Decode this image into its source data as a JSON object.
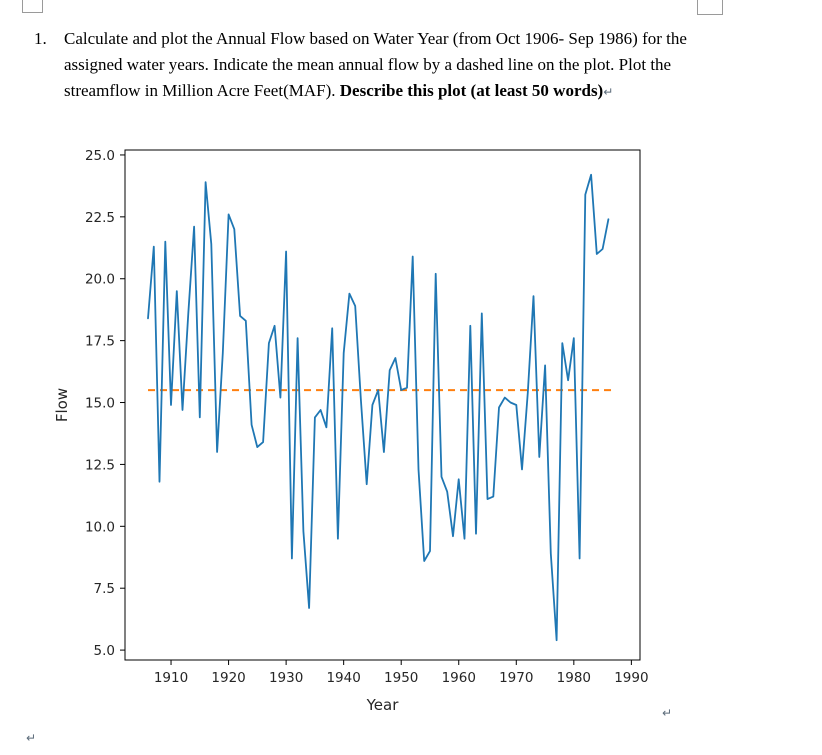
{
  "document": {
    "question_number": "1.",
    "question_text": "Calculate and plot the Annual Flow based on Water Year (from Oct 1906- Sep 1986) for the assigned water years. Indicate the mean annual flow by a dashed line on the plot. Plot the streamflow in Million Acre Feet(MAF). ",
    "question_bold": "Describe this plot (at least 50 words)",
    "line_break_mark": "↵",
    "para_mark_bottom_left": "↵",
    "para_mark_right": "↵"
  },
  "chart_data": {
    "type": "line",
    "title": "",
    "xlabel": "Year",
    "ylabel": "Flow",
    "x_ticks": [
      1910,
      1920,
      1930,
      1940,
      1950,
      1960,
      1970,
      1980,
      1990
    ],
    "y_ticks": [
      5.0,
      7.5,
      10.0,
      12.5,
      15.0,
      17.5,
      20.0,
      22.5,
      25.0
    ],
    "xlim": [
      1902,
      1991.5
    ],
    "ylim": [
      4.6,
      25.2
    ],
    "grid": false,
    "legend": "none",
    "mean_flow": 15.5,
    "line_color": "#1f77b4",
    "mean_line_color": "#ff7f0e",
    "years": [
      1906,
      1907,
      1908,
      1909,
      1910,
      1911,
      1912,
      1913,
      1914,
      1915,
      1916,
      1917,
      1918,
      1919,
      1920,
      1921,
      1922,
      1923,
      1924,
      1925,
      1926,
      1927,
      1928,
      1929,
      1930,
      1931,
      1932,
      1933,
      1934,
      1935,
      1936,
      1937,
      1938,
      1939,
      1940,
      1941,
      1942,
      1943,
      1944,
      1945,
      1946,
      1947,
      1948,
      1949,
      1950,
      1951,
      1952,
      1953,
      1954,
      1955,
      1956,
      1957,
      1958,
      1959,
      1960,
      1961,
      1962,
      1963,
      1964,
      1965,
      1966,
      1967,
      1968,
      1969,
      1970,
      1971,
      1972,
      1973,
      1974,
      1975,
      1976,
      1977,
      1978,
      1979,
      1980,
      1981,
      1982,
      1983,
      1984,
      1985,
      1986
    ],
    "values": [
      18.4,
      21.3,
      11.8,
      21.5,
      14.9,
      19.5,
      14.7,
      18.6,
      22.1,
      14.4,
      23.9,
      21.4,
      13.0,
      17.0,
      22.6,
      22.0,
      18.5,
      18.3,
      14.1,
      13.2,
      13.4,
      17.4,
      18.1,
      15.2,
      21.1,
      8.7,
      17.6,
      9.8,
      6.7,
      14.4,
      14.7,
      14.0,
      18.0,
      9.5,
      17.0,
      19.4,
      18.9,
      15.1,
      11.7,
      14.9,
      15.5,
      13.0,
      16.3,
      16.8,
      15.5,
      15.6,
      20.9,
      12.3,
      8.6,
      9.0,
      20.2,
      12.0,
      11.4,
      9.6,
      11.9,
      9.5,
      18.1,
      9.7,
      18.6,
      11.1,
      11.2,
      14.8,
      15.2,
      15.0,
      14.9,
      12.3,
      15.4,
      19.3,
      12.8,
      16.5,
      8.9,
      5.4,
      17.4,
      15.9,
      17.6,
      8.7,
      23.4,
      24.2,
      21.0,
      21.2,
      22.4
    ]
  }
}
